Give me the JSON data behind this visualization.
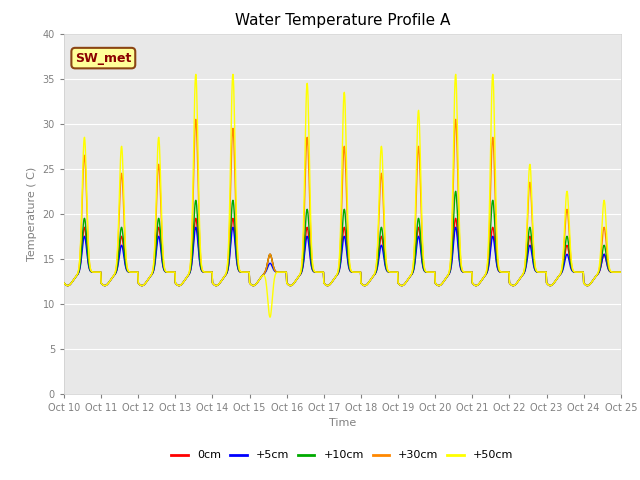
{
  "title": "Water Temperature Profile A",
  "xlabel": "Time",
  "ylabel": "Temperature ( C)",
  "ylim": [
    0,
    40
  ],
  "xtick_labels": [
    "Oct 10",
    "Oct 11",
    "Oct 12",
    "Oct 13",
    "Oct 14",
    "Oct 15",
    "Oct 16",
    "Oct 17",
    "Oct 18",
    "Oct 19",
    "Oct 20",
    "Oct 21",
    "Oct 22",
    "Oct 23",
    "Oct 24",
    "Oct 25"
  ],
  "ytick_values": [
    0,
    5,
    10,
    15,
    20,
    25,
    30,
    35,
    40
  ],
  "series": {
    "0cm": {
      "color": "#ff0000",
      "label": "0cm"
    },
    "+5cm": {
      "color": "#0000ff",
      "label": "+5cm"
    },
    "+10cm": {
      "color": "#00aa00",
      "label": "+10cm"
    },
    "+30cm": {
      "color": "#ff8800",
      "label": "+30cm"
    },
    "+50cm": {
      "color": "#ffff00",
      "label": "+50cm"
    }
  },
  "annotation": {
    "text": "SW_met",
    "facecolor": "#ffff99",
    "edgecolor": "#8B4513",
    "textcolor": "#8B0000",
    "fontsize": 9,
    "fontweight": "bold"
  },
  "bg_color": "#e8e8e8",
  "grid_color": "#ffffff",
  "title_fontsize": 11,
  "tick_fontsize": 7,
  "label_fontsize": 8
}
